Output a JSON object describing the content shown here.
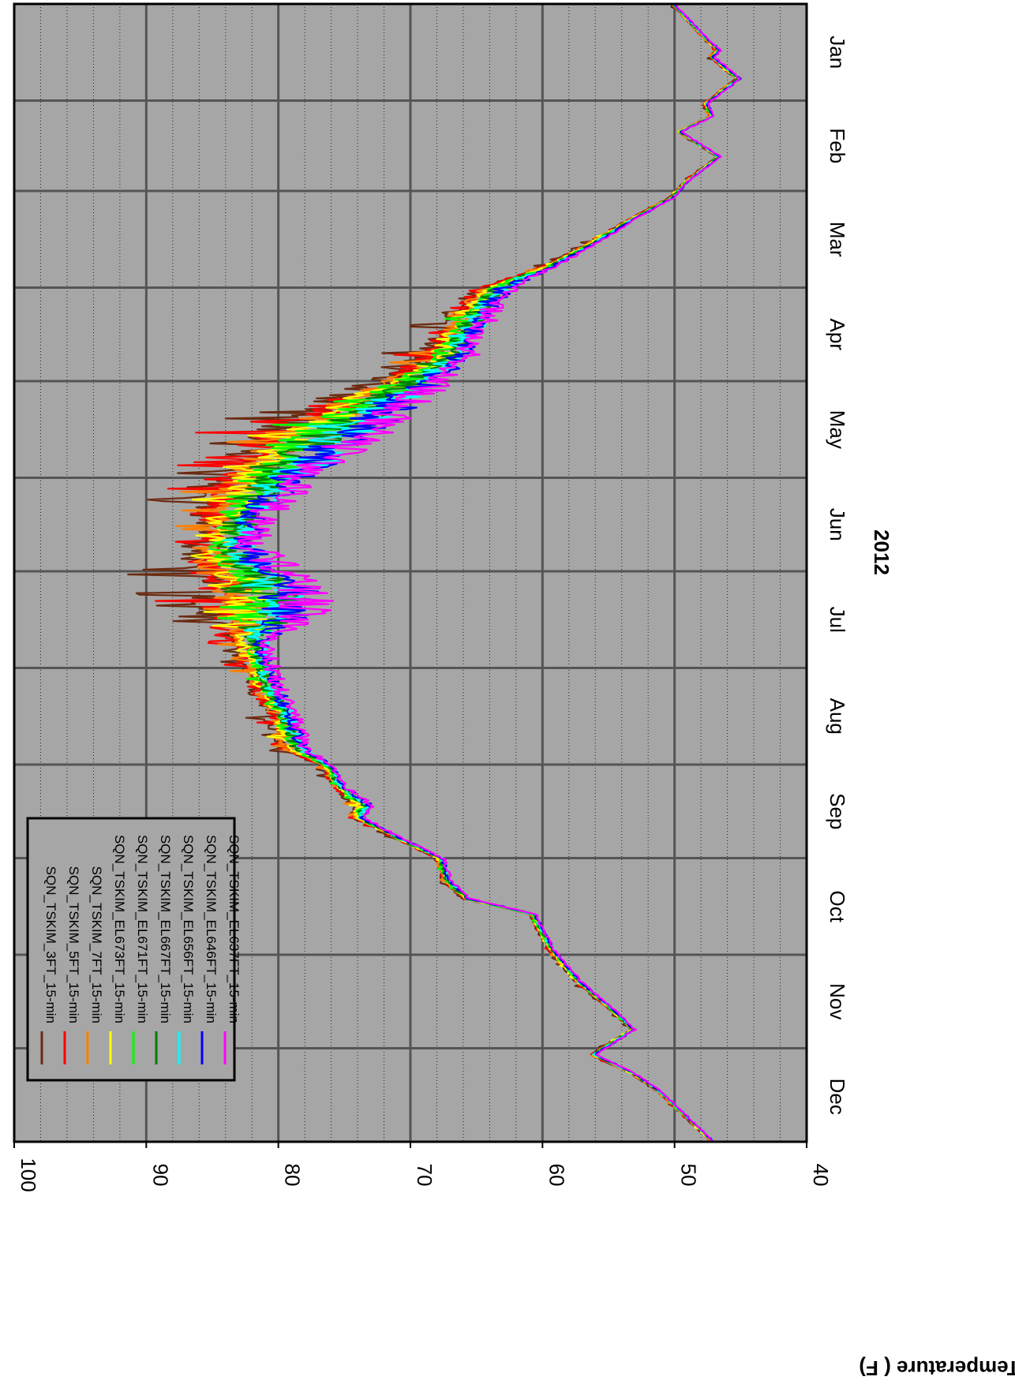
{
  "chart_data": {
    "type": "line",
    "orientation": "rotated-90",
    "xlabel": "2012",
    "ylabel": "Temperature ( F)",
    "ylim": [
      40,
      100
    ],
    "y_ticks": [
      "40",
      "50",
      "60",
      "70",
      "80",
      "90",
      "100"
    ],
    "month_ticks": [
      "Jan",
      "Feb",
      "Mar",
      "Apr",
      "May",
      "Jun",
      "Jul",
      "Aug",
      "Sep",
      "Oct",
      "Nov",
      "Dec"
    ],
    "grid": true,
    "background": "#a6a6a6",
    "legend_position": "top-left",
    "series": [
      {
        "name": "SQN_TSKIM_3FT_15-min",
        "color": "#6b2a10"
      },
      {
        "name": "SQN_TSKIM_5FT_15-min",
        "color": "#ff0000"
      },
      {
        "name": "SQN_TSKIM_7FT_15-min",
        "color": "#ff8000"
      },
      {
        "name": "SQN_TSKIM_EL673FT_15-min",
        "color": "#ffff00"
      },
      {
        "name": "SQN_TSKIM_EL671FT_15-min",
        "color": "#00ff00"
      },
      {
        "name": "SQN_TSKIM_EL667FT_15-min",
        "color": "#008000"
      },
      {
        "name": "SQN_TSKIM_EL656FT_15-min",
        "color": "#00ffff"
      },
      {
        "name": "SQN_TSKIM_EL646FT_15-min",
        "color": "#0000ff"
      },
      {
        "name": "SQN_TSKIM_EL637FT_15-min",
        "color": "#ff00ff"
      }
    ],
    "daily_profile": {
      "day": [
        1,
        10,
        16,
        18,
        25,
        33,
        37,
        42,
        50,
        58,
        63,
        70,
        78,
        85,
        92,
        95,
        100,
        108,
        115,
        122,
        128,
        135,
        140,
        148,
        152,
        160,
        168,
        175,
        182,
        190,
        196,
        205,
        213,
        220,
        228,
        232,
        240,
        245,
        252,
        258,
        262,
        268,
        275,
        282,
        288,
        293,
        298,
        305,
        315,
        322,
        330,
        338,
        344,
        350,
        358,
        366
      ],
      "base": [
        50.0,
        48.0,
        46.5,
        47.0,
        45.0,
        47.5,
        47.0,
        49.5,
        46.5,
        49.0,
        50.0,
        53.0,
        56.0,
        59.0,
        62.5,
        63.0,
        64.0,
        65.0,
        66.0,
        68.0,
        70.0,
        72.0,
        74.0,
        76.0,
        78.0,
        80.0,
        81.5,
        82.0,
        80.0,
        78.0,
        78.0,
        81.0,
        80.5,
        80.0,
        79.0,
        78.5,
        78.0,
        76.0,
        75.0,
        73.0,
        73.5,
        71.0,
        67.5,
        67.0,
        65.5,
        60.5,
        60.0,
        59.0,
        57.0,
        55.0,
        53.0,
        56.0,
        53.0,
        51.0,
        49.0,
        47.0
      ],
      "spread": [
        0.3,
        0.3,
        0.4,
        0.4,
        0.4,
        0.4,
        0.4,
        0.3,
        0.3,
        0.3,
        0.4,
        0.5,
        0.8,
        1.0,
        2.5,
        3.0,
        3.5,
        3.5,
        4.0,
        5.0,
        7.0,
        8.0,
        9.0,
        8.0,
        7.0,
        6.0,
        5.0,
        5.0,
        7.0,
        8.0,
        8.0,
        3.0,
        2.5,
        2.5,
        2.0,
        2.5,
        2.0,
        1.0,
        1.0,
        1.5,
        1.0,
        0.6,
        0.7,
        0.7,
        0.6,
        0.5,
        0.5,
        0.5,
        0.5,
        0.4,
        0.4,
        0.4,
        0.4,
        0.3,
        0.3,
        0.3
      ]
    }
  }
}
